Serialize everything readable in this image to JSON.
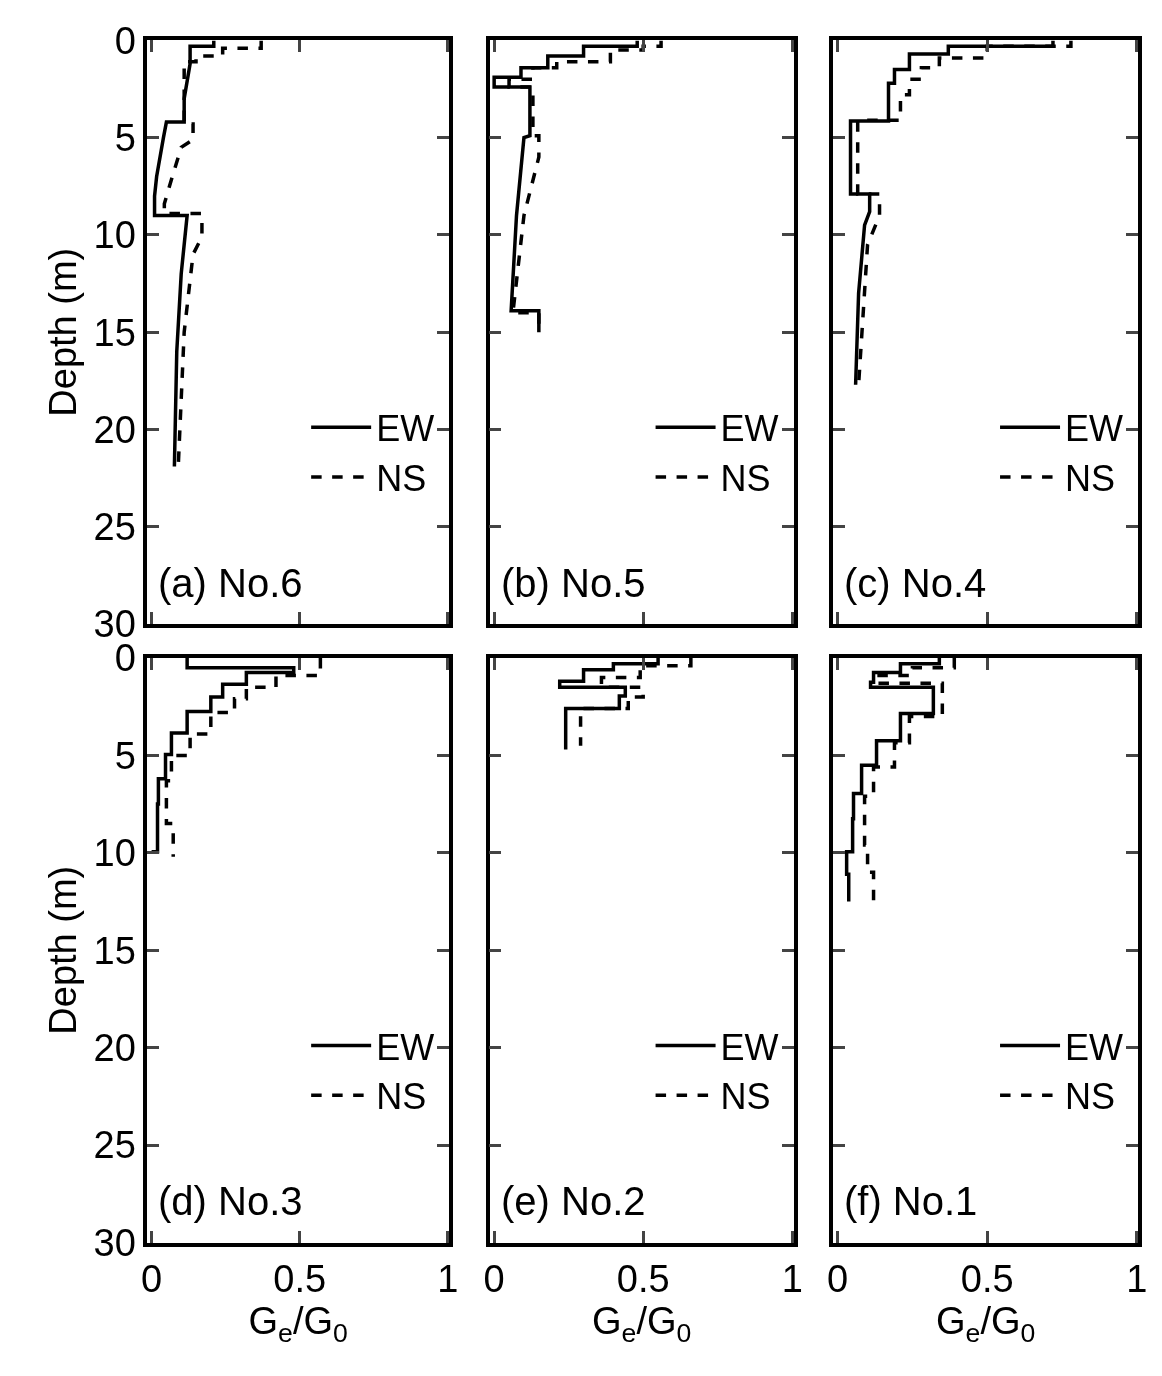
{
  "chart_data": [
    {
      "type": "line",
      "ylabel": "Depth (m)",
      "annotations": [
        "(a) No.6"
      ],
      "xlim": [
        -0.015,
        1.005
      ],
      "xticks": [
        0,
        0.5,
        1
      ],
      "ylim": [
        30,
        0
      ],
      "yticks": [
        0,
        5,
        10,
        15,
        20,
        25,
        30
      ],
      "tick_labels": "y",
      "legend": "bottom right",
      "series": [
        {
          "name": "EW",
          "color": "#000000",
          "line_style": "solid",
          "x": [
            0.21,
            0.21,
            0.13,
            0.13,
            0.11,
            0.11,
            0.05,
            0.04,
            0.017,
            0.01,
            0.01,
            0.12,
            0.1,
            0.085,
            0.077
          ],
          "values": [
            0,
            0.3,
            0.3,
            1.2,
            3,
            4.2,
            4.2,
            5,
            7,
            8,
            9,
            9,
            12,
            16,
            21.9
          ]
        },
        {
          "name": "NS",
          "color": "#000000",
          "line_style": "dashed",
          "x": [
            0.37,
            0.37,
            0.24,
            0.24,
            0.15,
            0.15,
            0.11,
            0.11,
            0.14,
            0.14,
            0.1,
            0.07,
            0.043,
            0.043,
            0.17,
            0.17,
            0.14,
            0.11,
            0.09
          ],
          "values": [
            0,
            0.4,
            0.4,
            0.8,
            0.8,
            1.1,
            1.1,
            4.3,
            4.3,
            5.1,
            5.5,
            7,
            8.4,
            8.9,
            8.9,
            10.1,
            11,
            15,
            21.9
          ]
        }
      ]
    },
    {
      "type": "line",
      "annotations": [
        "(b) No.5"
      ],
      "xlim": [
        -0.015,
        1.005
      ],
      "xticks": [
        0,
        0.5,
        1
      ],
      "ylim": [
        30,
        0
      ],
      "yticks": [
        0,
        5,
        10,
        15,
        20,
        25,
        30
      ],
      "tick_labels": false,
      "legend": "bottom right",
      "series": [
        {
          "name": "EW",
          "color": "#000000",
          "line_style": "solid",
          "x": [
            0.48,
            0.48,
            0.3,
            0.3,
            0.18,
            0.18,
            0.09,
            0.09,
            0.0,
            0.0,
            0.12,
            0.12,
            0.1,
            0.075,
            0.057,
            0.057,
            0.15,
            0.15
          ],
          "values": [
            0,
            0.3,
            0.3,
            0.8,
            0.8,
            1.4,
            1.4,
            1.9,
            1.9,
            2.4,
            2.4,
            4.9,
            5,
            9,
            13.9,
            13.9,
            13.9,
            15
          ]
        },
        {
          "name": "NS",
          "color": "#000000",
          "line_style": "dashed",
          "x": [
            0.56,
            0.56,
            0.5,
            0.5,
            0.39,
            0.39,
            0.21,
            0.21,
            0.13,
            0.13,
            0.05,
            0.05,
            0.13,
            0.13,
            0.15,
            0.15,
            0.1,
            0.063,
            0.063,
            0.15,
            0.15
          ],
          "values": [
            0,
            0.3,
            0.3,
            0.5,
            0.5,
            1.1,
            1.1,
            1.4,
            1.4,
            2.0,
            2.0,
            2.4,
            2.4,
            4.9,
            4.9,
            6,
            9,
            14,
            14,
            14,
            15
          ]
        }
      ]
    },
    {
      "type": "line",
      "annotations": [
        "(c) No.4"
      ],
      "xlim": [
        -0.015,
        1.005
      ],
      "xticks": [
        0,
        0.5,
        1
      ],
      "ylim": [
        30,
        0
      ],
      "yticks": [
        0,
        5,
        10,
        15,
        20,
        25,
        30
      ],
      "tick_labels": false,
      "legend": "bottom right",
      "series": [
        {
          "name": "EW",
          "color": "#000000",
          "line_style": "solid",
          "x": [
            0.72,
            0.72,
            0.37,
            0.37,
            0.24,
            0.24,
            0.19,
            0.19,
            0.17,
            0.17,
            0.043,
            0.043,
            0.107,
            0.107,
            0.09,
            0.07,
            0.06
          ],
          "values": [
            0,
            0.3,
            0.3,
            0.7,
            0.7,
            1.5,
            1.5,
            2.2,
            2.2,
            4.15,
            4.15,
            7.9,
            7.9,
            8.8,
            9.5,
            13,
            17.7
          ]
        },
        {
          "name": "NS",
          "color": "#000000",
          "line_style": "dashed",
          "x": [
            0.78,
            0.78,
            0.5,
            0.5,
            0.34,
            0.34,
            0.28,
            0.28,
            0.24,
            0.24,
            0.21,
            0.21,
            0.067,
            0.067,
            0.14,
            0.14,
            0.1,
            0.07
          ],
          "values": [
            0,
            0.3,
            0.3,
            0.9,
            0.9,
            1.4,
            1.4,
            2.0,
            2.0,
            2.8,
            2.8,
            4.1,
            4.1,
            7.9,
            7.9,
            9,
            10.5,
            17.7
          ]
        }
      ]
    },
    {
      "type": "line",
      "ylabel": "Depth (m)",
      "xlabel": "G$_{e}$/G$_{0}$",
      "annotations": [
        "(d) No.3"
      ],
      "xlim": [
        -0.015,
        1.005
      ],
      "xticks": [
        0,
        0.5,
        1
      ],
      "ylim": [
        30,
        0
      ],
      "yticks": [
        0,
        5,
        10,
        15,
        20,
        25,
        30
      ],
      "legend": "bottom right",
      "series": [
        {
          "name": "EW",
          "color": "#000000",
          "line_style": "solid",
          "x": [
            0.12,
            0.12,
            0.48,
            0.48,
            0.32,
            0.32,
            0.24,
            0.24,
            0.2,
            0.2,
            0.12,
            0.12,
            0.067,
            0.067,
            0.047,
            0.047,
            0.023,
            0.023,
            0.02,
            0.02,
            0.0
          ],
          "values": [
            0,
            0.5,
            0.5,
            0.75,
            0.75,
            1.35,
            1.35,
            2.0,
            2.0,
            2.75,
            2.75,
            3.85,
            3.85,
            4.95,
            4.95,
            6.2,
            6.2,
            7.5,
            7.5,
            9.95,
            9.95
          ]
        },
        {
          "name": "NS",
          "color": "#000000",
          "line_style": "dashed",
          "x": [
            0.57,
            0.57,
            0.42,
            0.42,
            0.32,
            0.32,
            0.28,
            0.28,
            0.2,
            0.2,
            0.13,
            0.13,
            0.067,
            0.067,
            0.05,
            0.05,
            0.073,
            0.073
          ],
          "values": [
            0,
            0.9,
            0.9,
            1.5,
            1.5,
            2.1,
            2.1,
            2.8,
            2.8,
            3.9,
            3.9,
            5.0,
            5.0,
            6.3,
            6.3,
            8.5,
            8.5,
            10.2
          ]
        }
      ]
    },
    {
      "type": "line",
      "xlabel": "G$_{e}$/G$_{0}$",
      "annotations": [
        "(e) No.2"
      ],
      "xlim": [
        -0.015,
        1.005
      ],
      "xticks": [
        0,
        0.5,
        1
      ],
      "ylim": [
        30,
        0
      ],
      "yticks": [
        0,
        5,
        10,
        15,
        20,
        25,
        30
      ],
      "tick_labels": "x",
      "legend": "bottom right",
      "series": [
        {
          "name": "EW",
          "color": "#000000",
          "line_style": "solid",
          "x": [
            0.55,
            0.55,
            0.4,
            0.4,
            0.3,
            0.3,
            0.22,
            0.22,
            0.44,
            0.44,
            0.42,
            0.42,
            0.24,
            0.24
          ],
          "values": [
            0,
            0.3,
            0.3,
            0.6,
            0.6,
            1.2,
            1.2,
            1.5,
            1.5,
            1.95,
            1.95,
            2.6,
            2.6,
            4.7
          ]
        },
        {
          "name": "NS",
          "color": "#000000",
          "line_style": "dashed",
          "x": [
            0.66,
            0.66,
            0.49,
            0.49,
            0.36,
            0.36,
            0.5,
            0.5,
            0.45,
            0.45,
            0.29,
            0.29
          ],
          "values": [
            0,
            0.4,
            0.4,
            1.0,
            1.0,
            1.5,
            1.5,
            2.0,
            2.0,
            2.6,
            2.6,
            4.5
          ]
        }
      ]
    },
    {
      "type": "line",
      "xlabel": "G$_{e}$/G$_{0}$",
      "annotations": [
        "(f) No.1"
      ],
      "xlim": [
        -0.015,
        1.005
      ],
      "xticks": [
        0,
        0.5,
        1
      ],
      "ylim": [
        30,
        0
      ],
      "yticks": [
        0,
        5,
        10,
        15,
        20,
        25,
        30
      ],
      "tick_labels": "x",
      "legend": "bottom right",
      "series": [
        {
          "name": "EW",
          "color": "#000000",
          "line_style": "solid",
          "x": [
            0.34,
            0.34,
            0.21,
            0.21,
            0.12,
            0.12,
            0.11,
            0.11,
            0.32,
            0.32,
            0.21,
            0.21,
            0.13,
            0.13,
            0.08,
            0.08,
            0.053,
            0.053,
            0.05,
            0.05,
            0.03,
            0.03,
            0.037,
            0.037
          ],
          "values": [
            0,
            0.3,
            0.3,
            0.75,
            0.75,
            1.25,
            1.25,
            1.5,
            1.5,
            2.85,
            2.85,
            4.25,
            4.25,
            5.5,
            5.5,
            6.95,
            6.95,
            8.25,
            8.25,
            9.95,
            9.95,
            11.1,
            11.1,
            12.5
          ]
        },
        {
          "name": "NS",
          "color": "#000000",
          "line_style": "dashed",
          "x": [
            0.39,
            0.39,
            0.25,
            0.25,
            0.13,
            0.13,
            0.35,
            0.35,
            0.24,
            0.24,
            0.19,
            0.19,
            0.12,
            0.12,
            0.09,
            0.09,
            0.1,
            0.1,
            0.12,
            0.12
          ],
          "values": [
            0,
            0.5,
            0.5,
            0.9,
            0.9,
            1.3,
            1.3,
            3.0,
            3.0,
            4.35,
            4.35,
            5.6,
            5.6,
            7.1,
            7.1,
            9.6,
            9.6,
            11,
            11,
            12.5
          ]
        }
      ]
    }
  ]
}
